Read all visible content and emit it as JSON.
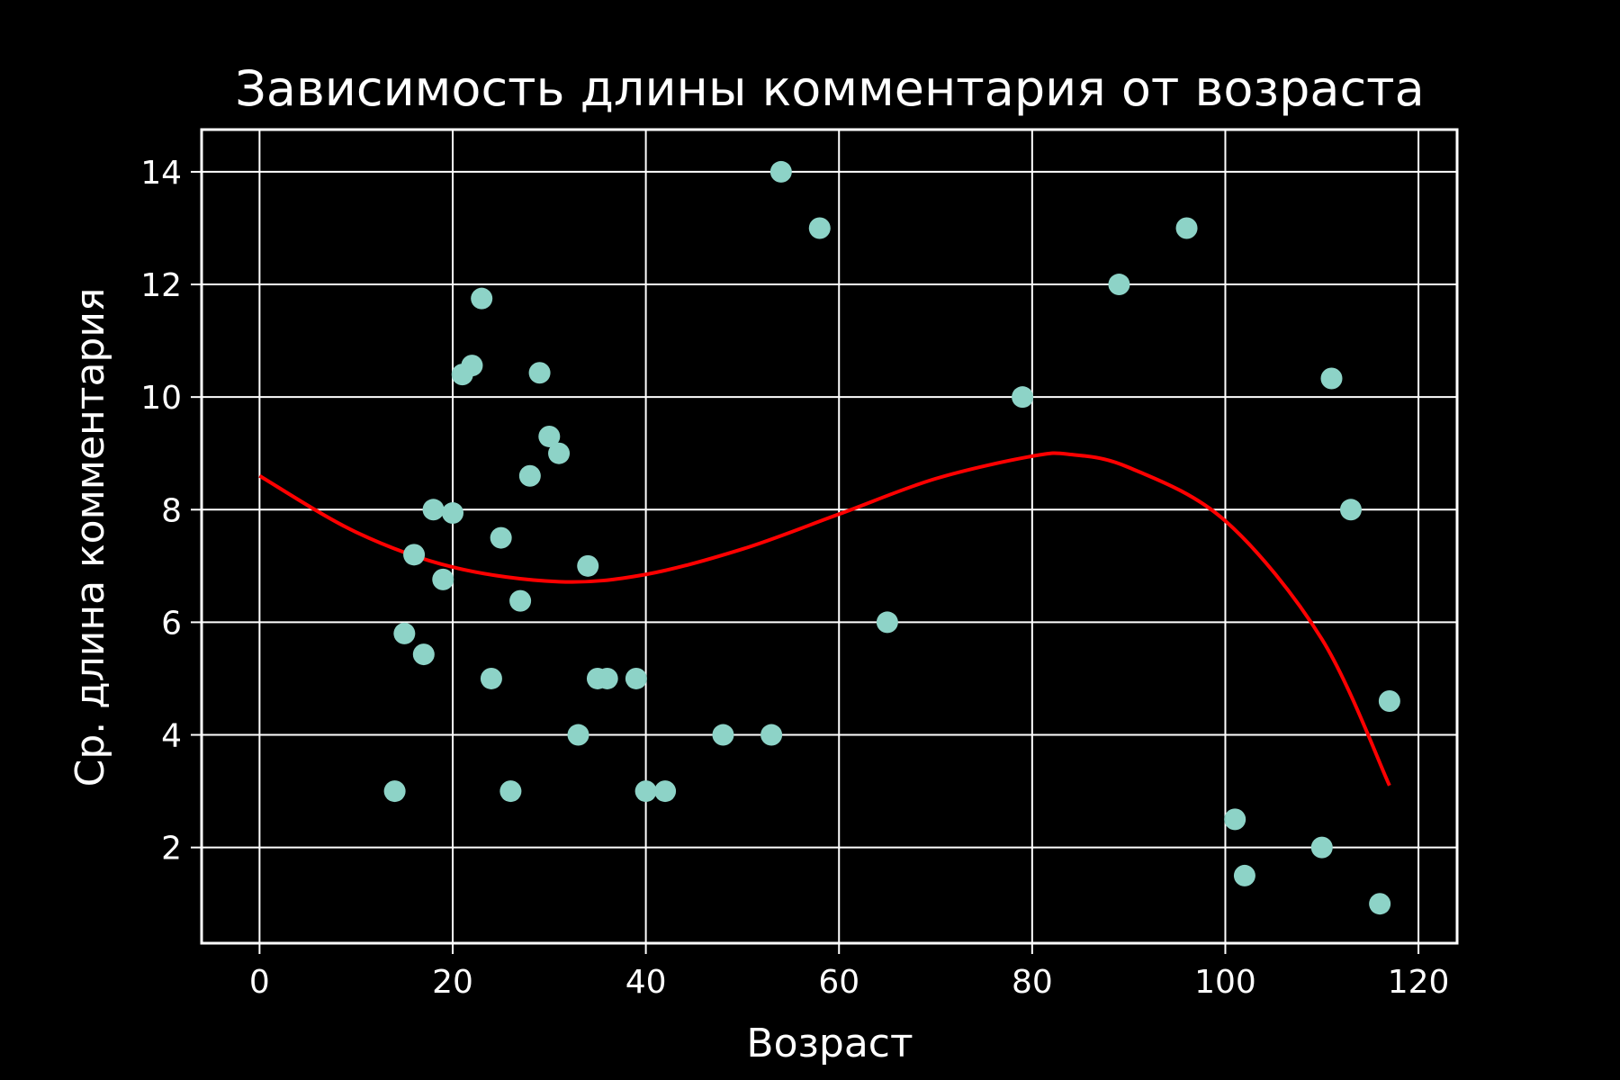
{
  "chart_data": {
    "type": "scatter",
    "title": "Зависимость длины комментария от возраста",
    "xlabel": "Возраст",
    "ylabel": "Ср. длина комментария",
    "xlim": [
      -6,
      124
    ],
    "ylim": [
      0.3,
      14.75
    ],
    "xticks": [
      0,
      20,
      40,
      60,
      80,
      100,
      120
    ],
    "yticks": [
      2,
      4,
      6,
      8,
      10,
      12,
      14
    ],
    "xtick_labels": [
      "0",
      "20",
      "40",
      "60",
      "80",
      "100",
      "120"
    ],
    "ytick_labels": [
      "2",
      "4",
      "6",
      "8",
      "10",
      "12",
      "14"
    ],
    "grid": true,
    "colors": {
      "background": "#000000",
      "axes": "#ffffff",
      "points": "#8dd3c7",
      "trend": "#ff0000"
    },
    "points": {
      "x": [
        14,
        15,
        16,
        17,
        18,
        19,
        20,
        21,
        22,
        23,
        24,
        25,
        26,
        27,
        28,
        29,
        30,
        31,
        33,
        34,
        35,
        36,
        39,
        40,
        42,
        48,
        53,
        54,
        58,
        65,
        79,
        89,
        96,
        101,
        102,
        110,
        111,
        113,
        116,
        117
      ],
      "y": [
        3.0,
        5.8,
        7.2,
        5.43,
        8.0,
        6.76,
        7.94,
        10.4,
        10.56,
        11.75,
        5.0,
        7.5,
        3.0,
        6.38,
        8.6,
        10.43,
        9.3,
        9.0,
        4.0,
        7.0,
        5.0,
        5.0,
        5.0,
        3.0,
        3.0,
        4.0,
        4.0,
        14.0,
        13.0,
        6.0,
        10.0,
        12.0,
        13.0,
        2.5,
        1.5,
        2.0,
        10.33,
        8.0,
        1.0,
        4.6
      ]
    },
    "trend_line": {
      "x": [
        0,
        10,
        20,
        31,
        40,
        50,
        60,
        70,
        80,
        84,
        90,
        100,
        110,
        117
      ],
      "y": [
        8.6,
        7.6,
        6.98,
        6.72,
        6.85,
        7.3,
        7.92,
        8.55,
        8.95,
        8.98,
        8.75,
        7.8,
        5.7,
        3.1
      ]
    }
  }
}
